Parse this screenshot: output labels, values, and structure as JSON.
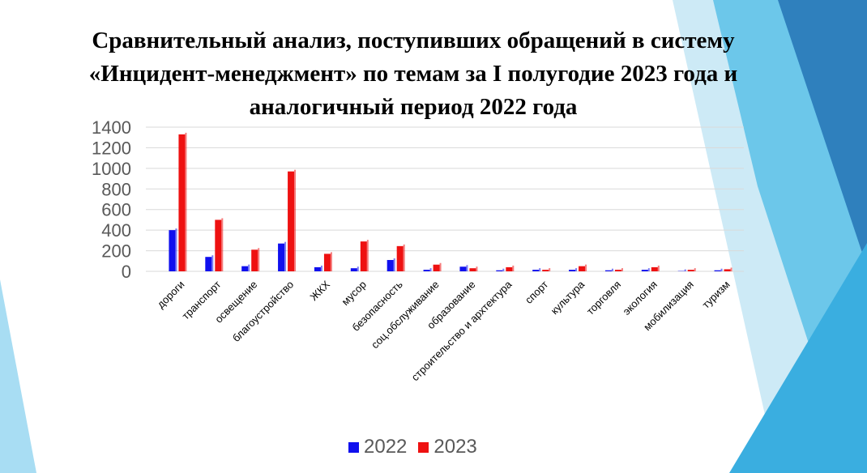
{
  "title_lines": [
    "Сравнительный анализ, поступивших обращений в систему",
    "«Инцидент-менеджмент» по темам за I полугодие 2023 года и",
    "аналогичный период 2022 года"
  ],
  "colors": {
    "series_2022": "#1010ee",
    "series_2023": "#ee1111",
    "grid": "#d9d9d9",
    "bg_light": "#bfe6f4",
    "bg_mid": "#5fc3e6",
    "bg_dark": "#2f86bf"
  },
  "chart_data": {
    "type": "bar",
    "title": "Сравнительный анализ, поступивших обращений в систему «Инцидент-менеджмент» по темам за I полугодие 2023 года и аналогичный период 2022 года",
    "categories": [
      "дороги",
      "транспорт",
      "освещение",
      "благоустройство",
      "ЖКХ",
      "мусор",
      "безопасность",
      "соц.обслуживание",
      "образование",
      "строительство и архтектура",
      "спорт",
      "культура",
      "торговля",
      "экология",
      "мобилизация",
      "туризм"
    ],
    "series": [
      {
        "name": "2022",
        "values": [
          400,
          140,
          50,
          270,
          40,
          30,
          110,
          15,
          45,
          10,
          15,
          15,
          10,
          15,
          3,
          10
        ]
      },
      {
        "name": "2023",
        "values": [
          1330,
          500,
          210,
          970,
          170,
          290,
          245,
          65,
          30,
          40,
          15,
          50,
          15,
          40,
          15,
          20
        ]
      }
    ],
    "ylim": [
      0,
      1400
    ],
    "yticks": [
      "0",
      "200",
      "400",
      "600",
      "800",
      "1000",
      "1200",
      "1400"
    ],
    "grid": true,
    "legend_position": "bottom"
  },
  "legend": [
    {
      "label": "2022",
      "color_key": "series_2022"
    },
    {
      "label": "2023",
      "color_key": "series_2023"
    }
  ]
}
